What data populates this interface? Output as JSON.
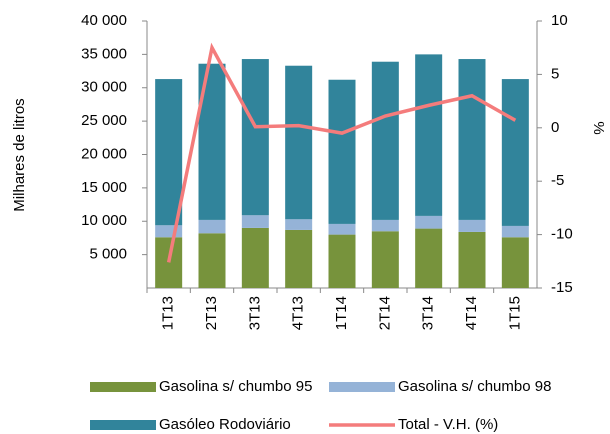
{
  "chart_data": {
    "type": "bar",
    "categories": [
      "1T13",
      "2T13",
      "3T13",
      "4T13",
      "1T14",
      "2T14",
      "3T14",
      "4T14",
      "1T15"
    ],
    "y_label": "Milhares de litros",
    "y2_label": "%",
    "series": [
      {
        "name": "Gasolina s/ chumbo 95",
        "color": "#77933c",
        "values": [
          7600,
          8200,
          9000,
          8700,
          8000,
          8500,
          8900,
          8400,
          7600
        ]
      },
      {
        "name": "Gasolina s/ chumbo 98",
        "color": "#95b3d7",
        "values": [
          1800,
          2000,
          1900,
          1600,
          1600,
          1700,
          1900,
          1800,
          1700
        ]
      },
      {
        "name": "Gasóleo  Rodoviário",
        "color": "#31849b",
        "values": [
          21900,
          23400,
          23400,
          23000,
          21600,
          23700,
          24200,
          24100,
          22000
        ]
      },
      {
        "name": "Total - V.H. (%)",
        "color": "#f47c7c",
        "type": "line",
        "axis": "y2",
        "values": [
          -12.6,
          7.5,
          0.1,
          0.2,
          -0.5,
          1.1,
          2.1,
          3.0,
          0.7
        ]
      }
    ],
    "ylim": [
      0,
      40000
    ],
    "yticks": [
      {
        "value": 5000,
        "label": "5 000"
      },
      {
        "value": 10000,
        "label": "10 000"
      },
      {
        "value": 15000,
        "label": "15 000"
      },
      {
        "value": 20000,
        "label": "20 000"
      },
      {
        "value": 25000,
        "label": "25 000"
      },
      {
        "value": 30000,
        "label": "30 000"
      },
      {
        "value": 35000,
        "label": "35 000"
      },
      {
        "value": 40000,
        "label": "40 000"
      }
    ],
    "y2lim": [
      -15,
      10
    ],
    "y2ticks": [
      -15,
      -10,
      -5,
      0,
      5,
      10
    ]
  }
}
